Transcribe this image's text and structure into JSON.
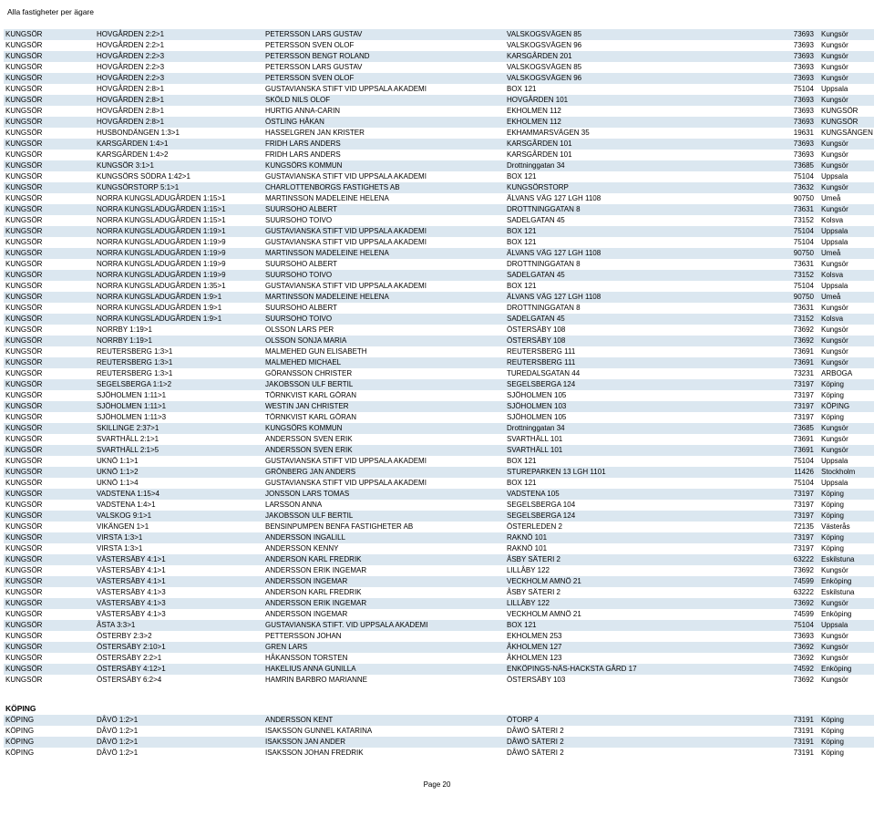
{
  "report_title": "Alla fastigheter per ägare",
  "page_number": "Page 20",
  "section2_title": "KÖPING",
  "rows": [
    [
      "KUNGSÖR",
      "HOVGÅRDEN 2:2>1",
      "PETERSSON LARS GUSTAV",
      "VALSKOGSVÄGEN 85",
      "73693",
      "Kungsör"
    ],
    [
      "KUNGSÖR",
      "HOVGÅRDEN 2:2>1",
      "PETERSSON SVEN OLOF",
      "VALSKOGSVÄGEN 96",
      "73693",
      "Kungsör"
    ],
    [
      "KUNGSÖR",
      "HOVGÅRDEN 2:2>3",
      "PETERSSON BENGT ROLAND",
      "KARSGÅRDEN 201",
      "73693",
      "Kungsör"
    ],
    [
      "KUNGSÖR",
      "HOVGÅRDEN 2:2>3",
      "PETERSSON LARS GUSTAV",
      "VALSKOGSVÄGEN 85",
      "73693",
      "Kungsör"
    ],
    [
      "KUNGSÖR",
      "HOVGÅRDEN 2:2>3",
      "PETERSSON SVEN OLOF",
      "VALSKOGSVÄGEN 96",
      "73693",
      "Kungsör"
    ],
    [
      "KUNGSÖR",
      "HOVGÅRDEN 2:8>1",
      "GUSTAVIANSKA STIFT VID UPPSALA AKADEMI",
      "BOX 121",
      "75104",
      "Uppsala"
    ],
    [
      "KUNGSÖR",
      "HOVGÅRDEN 2:8>1",
      "SKÖLD NILS OLOF",
      "HOVGÅRDEN 101",
      "73693",
      "Kungsör"
    ],
    [
      "KUNGSÖR",
      "HOVGÅRDEN 2:8>1",
      "HURTIG ANNA-CARIN",
      "EKHOLMEN 112",
      "73693",
      "KUNGSÖR"
    ],
    [
      "KUNGSÖR",
      "HOVGÅRDEN 2:8>1",
      "ÖSTLING HÅKAN",
      "EKHOLMEN 112",
      "73693",
      "KUNGSÖR"
    ],
    [
      "KUNGSÖR",
      "HUSBONDÄNGEN 1:3>1",
      "HASSELGREN JAN KRISTER",
      "EKHAMMARSVÄGEN 35",
      "19631",
      "KUNGSÄNGEN"
    ],
    [
      "KUNGSÖR",
      "KARSGÅRDEN 1:4>1",
      "FRIDH LARS ANDERS",
      "KARSGÅRDEN 101",
      "73693",
      "Kungsör"
    ],
    [
      "KUNGSÖR",
      "KARSGÅRDEN 1:4>2",
      "FRIDH LARS ANDERS",
      "KARSGÅRDEN 101",
      "73693",
      "Kungsör"
    ],
    [
      "KUNGSÖR",
      "KUNGSÖR 3:1>1",
      "KUNGSÖRS KOMMUN",
      "Drottninggatan 34",
      "73685",
      "Kungsör"
    ],
    [
      "KUNGSÖR",
      "KUNGSÖRS SÖDRA 1:42>1",
      "GUSTAVIANSKA STIFT VID UPPSALA AKADEMI",
      "BOX 121",
      "75104",
      "Uppsala"
    ],
    [
      "KUNGSÖR",
      "KUNGSÖRSTORP 5:1>1",
      "CHARLOTTENBORGS FASTIGHETS AB",
      "KUNGSÖRSTORP",
      "73632",
      "Kungsör"
    ],
    [
      "KUNGSÖR",
      "NORRA KUNGSLADUGÅRDEN 1:15>1",
      "MARTINSSON  MADELEINE HELENA",
      "ÄLVANS VÄG 127 LGH 1108",
      "90750",
      "Umeå"
    ],
    [
      "KUNGSÖR",
      "NORRA KUNGSLADUGÅRDEN 1:15>1",
      "SUURSOHO ALBERT",
      "DROTTNINGGATAN 8",
      "73631",
      "Kungsör"
    ],
    [
      "KUNGSÖR",
      "NORRA KUNGSLADUGÅRDEN 1:15>1",
      "SUURSOHO TOIVO",
      "SADELGATAN 45",
      "73152",
      "Kolsva"
    ],
    [
      "KUNGSÖR",
      "NORRA KUNGSLADUGÅRDEN 1:19>1",
      "GUSTAVIANSKA STIFT VID UPPSALA AKADEMI",
      "BOX 121",
      "75104",
      "Uppsala"
    ],
    [
      "KUNGSÖR",
      "NORRA KUNGSLADUGÅRDEN 1:19>9",
      "GUSTAVIANSKA STIFT VID UPPSALA AKADEMI",
      "BOX 121",
      "75104",
      "Uppsala"
    ],
    [
      "KUNGSÖR",
      "NORRA KUNGSLADUGÅRDEN 1:19>9",
      "MARTINSSON  MADELEINE HELENA",
      "ÄLVANS VÄG 127 LGH 1108",
      "90750",
      "Umeå"
    ],
    [
      "KUNGSÖR",
      "NORRA KUNGSLADUGÅRDEN 1:19>9",
      "SUURSOHO ALBERT",
      "DROTTNINGGATAN 8",
      "73631",
      "Kungsör"
    ],
    [
      "KUNGSÖR",
      "NORRA KUNGSLADUGÅRDEN 1:19>9",
      "SUURSOHO TOIVO",
      "SADELGATAN 45",
      "73152",
      "Kolsva"
    ],
    [
      "KUNGSÖR",
      "NORRA KUNGSLADUGÅRDEN 1:35>1",
      "GUSTAVIANSKA STIFT VID UPPSALA AKADEMI",
      "BOX 121",
      "75104",
      "Uppsala"
    ],
    [
      "KUNGSÖR",
      "NORRA KUNGSLADUGÅRDEN 1:9>1",
      "MARTINSSON  MADELEINE HELENA",
      "ÄLVANS VÄG 127 LGH 1108",
      "90750",
      "Umeå"
    ],
    [
      "KUNGSÖR",
      "NORRA KUNGSLADUGÅRDEN 1:9>1",
      "SUURSOHO ALBERT",
      "DROTTNINGGATAN 8",
      "73631",
      "Kungsör"
    ],
    [
      "KUNGSÖR",
      "NORRA KUNGSLADUGÅRDEN 1:9>1",
      "SUURSOHO TOIVO",
      "SADELGATAN 45",
      "73152",
      "Kolsva"
    ],
    [
      "KUNGSÖR",
      "NORRBY 1:19>1",
      "OLSSON LARS PER",
      "ÖSTERSÄBY 108",
      "73692",
      "Kungsör"
    ],
    [
      "KUNGSÖR",
      "NORRBY 1:19>1",
      "OLSSON SONJA MARIA",
      "ÖSTERSÄBY 108",
      "73692",
      "Kungsör"
    ],
    [
      "KUNGSÖR",
      "REUTERSBERG 1:3>1",
      "MALMEHED GUN ELISABETH",
      "REUTERSBERG 111",
      "73691",
      "Kungsör"
    ],
    [
      "KUNGSÖR",
      "REUTERSBERG 1:3>1",
      "MALMEHED MICHAEL",
      "REUTERSBERG 111",
      "73691",
      "Kungsör"
    ],
    [
      "KUNGSÖR",
      "REUTERSBERG 1:3>1",
      "GÖRANSSON  CHRISTER",
      "TUREDALSGATAN 44",
      "73231",
      "ARBOGA"
    ],
    [
      "KUNGSÖR",
      "SEGELSBERGA 1:1>2",
      "JAKOBSSON ULF BERTIL",
      "SEGELSBERGA 124",
      "73197",
      "Köping"
    ],
    [
      "KUNGSÖR",
      "SJÖHOLMEN 1:11>1",
      "TÖRNKVIST KARL GÖRAN",
      "SJÖHOLMEN 105",
      "73197",
      "Köping"
    ],
    [
      "KUNGSÖR",
      "SJÖHOLMEN 1:11>1",
      "WESTIN JAN CHRISTER",
      "SJÖHOLMEN 103",
      "73197",
      "KÖPING"
    ],
    [
      "KUNGSÖR",
      "SJÖHOLMEN 1:11>3",
      "TÖRNKVIST KARL GÖRAN",
      "SJÖHOLMEN 105",
      "73197",
      "Köping"
    ],
    [
      "KUNGSÖR",
      "SKILLINGE 2:37>1",
      "KUNGSÖRS KOMMUN",
      "Drottninggatan 34",
      "73685",
      "Kungsör"
    ],
    [
      "KUNGSÖR",
      "SVARTHÄLL 2:1>1",
      "ANDERSSON SVEN ERIK",
      "SVARTHÄLL 101",
      "73691",
      "Kungsör"
    ],
    [
      "KUNGSÖR",
      "SVARTHÄLL 2:1>5",
      "ANDERSSON SVEN ERIK",
      "SVARTHÄLL 101",
      "73691",
      "Kungsör"
    ],
    [
      "KUNGSÖR",
      "UKNÖ 1:1>1",
      "GUSTAVIANSKA STIFT VID UPPSALA AKADEMI",
      "BOX 121",
      "75104",
      "Uppsala"
    ],
    [
      "KUNGSÖR",
      "UKNÖ 1:1>2",
      "GRÖNBERG JAN ANDERS",
      "STUREPARKEN 13 LGH 1101",
      "11426",
      "Stockholm"
    ],
    [
      "KUNGSÖR",
      "UKNÖ 1:1>4",
      "GUSTAVIANSKA STIFT VID UPPSALA AKADEMI",
      "BOX 121",
      "75104",
      "Uppsala"
    ],
    [
      "KUNGSÖR",
      "VADSTENA 1:15>4",
      "JONSSON LARS TOMAS",
      "VADSTENA 105",
      "73197",
      "Köping"
    ],
    [
      "KUNGSÖR",
      "VADSTENA 1:4>1",
      "LARSSON ANNA",
      "SEGELSBERGA 104",
      "73197",
      "Köping"
    ],
    [
      "KUNGSÖR",
      "VALSKOG 9:1>1",
      "JAKOBSSON ULF BERTIL",
      "SEGELSBERGA 124",
      "73197",
      "Köping"
    ],
    [
      "KUNGSÖR",
      "VIKÄNGEN 1>1",
      "BENSINPUMPEN BENFA FASTIGHETER AB",
      "ÖSTERLEDEN 2",
      "72135",
      "Västerås"
    ],
    [
      "KUNGSÖR",
      "VIRSTA 1:3>1",
      "ANDERSSON INGALILL",
      "RAKNÖ 101",
      "73197",
      "Köping"
    ],
    [
      "KUNGSÖR",
      "VIRSTA 1:3>1",
      "ANDERSSON KENNY",
      "RAKNÖ 101",
      "73197",
      "Köping"
    ],
    [
      "KUNGSÖR",
      "VÄSTERSÄBY 4:1>1",
      "ANDERSON KARL FREDRIK",
      "ÅSBY SÄTERI 2",
      "63222",
      "Eskilstuna"
    ],
    [
      "KUNGSÖR",
      "VÄSTERSÄBY 4:1>1",
      "ANDERSSON ERIK INGEMAR",
      "LILLÅBY 122",
      "73692",
      "Kungsör"
    ],
    [
      "KUNGSÖR",
      "VÄSTERSÄBY 4:1>1",
      "ANDERSSON INGEMAR",
      "VECKHOLM AMNÖ 21",
      "74599",
      "Enköping"
    ],
    [
      "KUNGSÖR",
      "VÄSTERSÄBY 4:1>3",
      "ANDERSON KARL FREDRIK",
      "ÅSBY SÄTERI 2",
      "63222",
      "Eskilstuna"
    ],
    [
      "KUNGSÖR",
      "VÄSTERSÄBY 4:1>3",
      "ANDERSSON ERIK INGEMAR",
      "LILLÅBY 122",
      "73692",
      "Kungsör"
    ],
    [
      "KUNGSÖR",
      "VÄSTERSÄBY 4:1>3",
      "ANDERSSON INGEMAR",
      "VECKHOLM AMNÖ 21",
      "74599",
      "Enköping"
    ],
    [
      "KUNGSÖR",
      "ÅSTA 3:3>1",
      "GUSTAVIANSKA STIFT. VID UPPSALA AKADEMI",
      "BOX 121",
      "75104",
      "Uppsala"
    ],
    [
      "KUNGSÖR",
      "ÖSTERBY 2:3>2",
      "PETTERSSON JOHAN",
      "EKHOLMEN 253",
      "73693",
      "Kungsör"
    ],
    [
      "KUNGSÖR",
      "ÖSTERSÄBY 2:10>1",
      "GREN  LARS",
      "ÅKHOLMEN 127",
      "73692",
      "Kungsör"
    ],
    [
      "KUNGSÖR",
      "ÖSTERSÄBY 2:2>1",
      "HÅKANSSON TORSTEN",
      "ÅKHOLMEN 123",
      "73692",
      "Kungsör"
    ],
    [
      "KUNGSÖR",
      "ÖSTERSÄBY 4:12>1",
      "HAKELIUS ANNA GUNILLA",
      "ENKÖPINGS-NÄS-HACKSTA GÅRD 17",
      "74592",
      "Enköping"
    ],
    [
      "KUNGSÖR",
      "ÖSTERSÄBY 6:2>4",
      "HAMRIN BARBRO MARIANNE",
      "ÖSTERSÄBY 103",
      "73692",
      "Kungsör"
    ]
  ],
  "rows2": [
    [
      "KÖPING",
      "DÅVÖ 1:2>1",
      "ANDERSSON KENT",
      "ÖTORP 4",
      "73191",
      "Köping"
    ],
    [
      "KÖPING",
      "DÅVÖ 1:2>1",
      "ISAKSSON GUNNEL KATARINA",
      "DÅWÖ SÄTERI 2",
      "73191",
      "Köping"
    ],
    [
      "KÖPING",
      "DÅVÖ 1:2>1",
      "ISAKSSON JAN ANDER",
      "DÅWÖ SÄTERI 2",
      "73191",
      "Köping"
    ],
    [
      "KÖPING",
      "DÅVÖ 1:2>1",
      "ISAKSSON JOHAN FREDRIK",
      "DÅWÖ SÄTERI 2",
      "73191",
      "Köping"
    ]
  ]
}
